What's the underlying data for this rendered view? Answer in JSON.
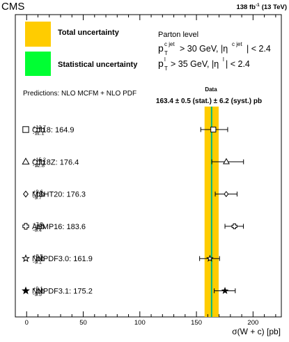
{
  "header": {
    "experiment": "CMS",
    "lumi": "138 fb",
    "lumi_sup": "-1",
    "energy": "(13 TeV)"
  },
  "legend": {
    "total_label": "Total uncertainty",
    "stat_label": "Statistical uncertainty",
    "total_color": "#ffcc00",
    "stat_color": "#00ff33"
  },
  "parton": {
    "title": "Parton level",
    "cut1_main": "p",
    "cut1_sup": "c jet",
    "cut1_sub": "T",
    "cut1_rest": "> 30 GeV, |η",
    "cut1_sup2": "c jet",
    "cut1_tail": "| < 2.4",
    "cut2_main": "p",
    "cut2_sup": "l",
    "cut2_sub": "T",
    "cut2_rest": "> 35 GeV, |η",
    "cut2_sup2": "l",
    "cut2_tail": "| < 2.4"
  },
  "predictions_title": "Predictions: NLO MCFM + NLO PDF",
  "data_box": {
    "label": "Data",
    "value_text": "163.4 ± 0.5  (stat.) ± 6.2  (syst.) pb"
  },
  "chart_data": {
    "type": "scatter",
    "xlabel": "σ(W + c) [pb]",
    "xlim": [
      -10,
      225
    ],
    "xticks": [
      0,
      50,
      100,
      150,
      200
    ],
    "measurement": {
      "value": 163.4,
      "stat": 0.5,
      "syst": 6.2
    },
    "predictions": [
      {
        "name": "CT18",
        "value": 164.9,
        "up": 12.7,
        "down": 11.1,
        "marker": "open-square",
        "label": "CT18: 164.9",
        "sup": "+12.7",
        "sub": "-11.1",
        "unit": "pb"
      },
      {
        "name": "CT18Z",
        "value": 176.4,
        "up": 15.2,
        "down": 12.8,
        "marker": "open-triangle",
        "label": "CT18Z: 176.4",
        "sup": "+15.2",
        "sub": "-12.8",
        "unit": "pb"
      },
      {
        "name": "MSHT20",
        "value": 176.3,
        "up": 9.6,
        "down": 9.7,
        "marker": "open-diamond",
        "label": "MSHT20: 176.3",
        "sup": "+9.6",
        "sub": "-9.7",
        "unit": "pb"
      },
      {
        "name": "ABMP16",
        "value": 183.6,
        "up": 7.9,
        "down": 8.4,
        "marker": "open-cross",
        "label": "ABMP16: 183.6",
        "sup": "+7.9",
        "sub": "-8.4",
        "unit": "pb"
      },
      {
        "name": "NNPDF3.0",
        "value": 161.9,
        "up": 8.5,
        "down": 9.1,
        "marker": "open-star",
        "label": "NNPDF3.0: 161.9",
        "sup": "+8.5",
        "sub": "-9.1",
        "unit": "pb"
      },
      {
        "name": "NNPDF3.1",
        "value": 175.2,
        "up": 9.1,
        "down": 9.5,
        "marker": "filled-star",
        "label": "NNPDF3.1: 175.2",
        "sup": "+9.1",
        "sub": "-9.5",
        "unit": "pb"
      }
    ]
  }
}
